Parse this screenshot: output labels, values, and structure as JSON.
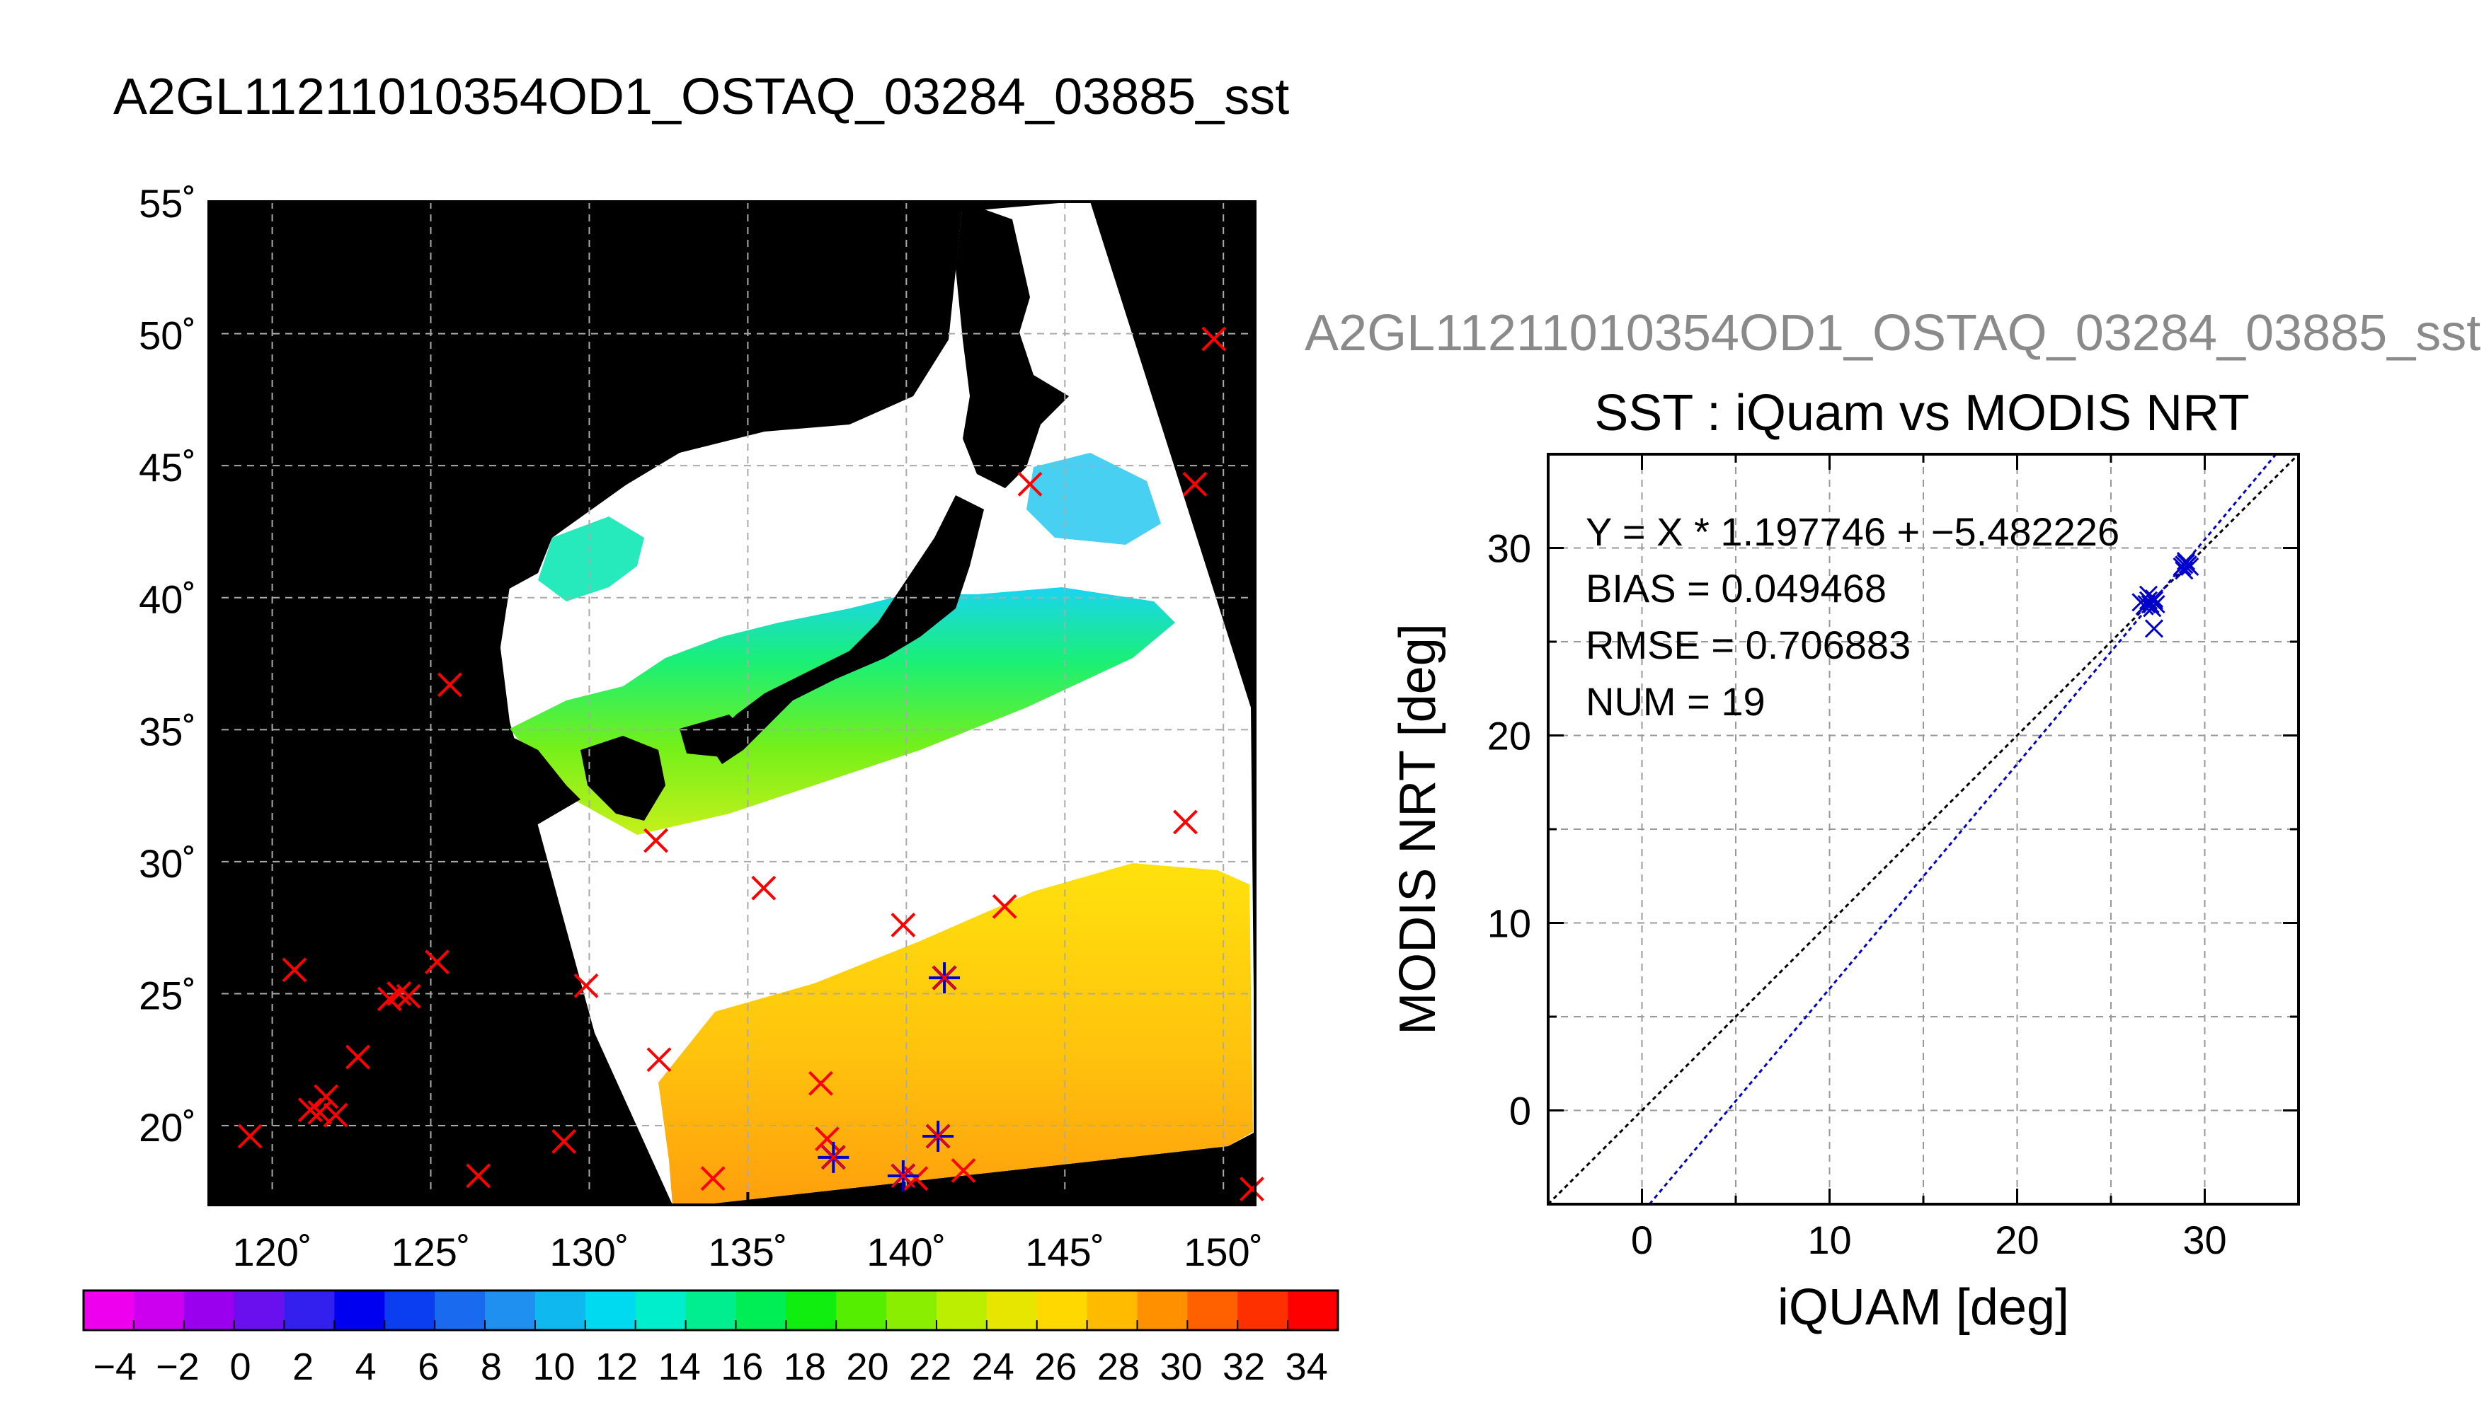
{
  "title": "A2GL11211010354OD1_OSTAQ_03284_03885_sst",
  "map": {
    "lat_ticks": [
      "55˚",
      "50˚",
      "45˚",
      "40˚",
      "35˚",
      "30˚",
      "25˚",
      "20˚"
    ],
    "lon_ticks": [
      "120˚",
      "125˚",
      "130˚",
      "135˚",
      "140˚",
      "145˚",
      "150˚"
    ],
    "colorbar_ticks": [
      "−4",
      "−2",
      "0",
      "2",
      "4",
      "6",
      "8",
      "10",
      "12",
      "14",
      "16",
      "18",
      "20",
      "22",
      "24",
      "26",
      "28",
      "30",
      "32",
      "34"
    ],
    "colorbar_colors": [
      "#ee00ee",
      "#cc00ee",
      "#9a00ee",
      "#6a10ee",
      "#3320ee",
      "#0000f0",
      "#0a3ef0",
      "#1a6af0",
      "#2090f0",
      "#10b8f0",
      "#00daf0",
      "#00eecc",
      "#00ee90",
      "#00ee55",
      "#10ee10",
      "#55ee00",
      "#8aee00",
      "#bbee00",
      "#e6e600",
      "#ffd800",
      "#ffbb00",
      "#ff9000",
      "#ff6000",
      "#ff3000",
      "#ff0000"
    ],
    "buoy_symbol_color": "#ff0000",
    "match_symbol_color": "#0000cc"
  },
  "scatter": {
    "subtitle": "A2GL11211010354OD1_OSTAQ_03284_03885_sst",
    "stats": {
      "equation": "Y = X * 1.197746 + −5.482226",
      "bias": "BIAS = 0.049468",
      "rmse": "RMSE = 0.706883",
      "num": "NUM = 19"
    },
    "reference_line_color": "#000000",
    "fit_line_color": "#0000cc"
  },
  "chart_data": [
    {
      "type": "scatter",
      "title": "SST : iQuam vs MODIS NRT",
      "xlabel": "iQUAM [deg]",
      "ylabel": "MODIS NRT [deg]",
      "xlim": [
        -5,
        35
      ],
      "ylim": [
        -5,
        35
      ],
      "x_ticks": [
        0,
        10,
        20,
        30
      ],
      "y_ticks": [
        0,
        10,
        20,
        30
      ],
      "grid": true,
      "fit": {
        "slope": 1.197746,
        "intercept": -5.482226
      },
      "series": [
        {
          "x": [
            26.6,
            26.8,
            27.0,
            27.1,
            27.2,
            27.3,
            27.0,
            26.9,
            27.3,
            27.4,
            27.3,
            28.8,
            29.0,
            28.9,
            29.1,
            29.0,
            28.8,
            28.9,
            29.2
          ],
          "y": [
            27.1,
            26.9,
            27.2,
            27.0,
            26.8,
            27.2,
            27.5,
            27.0,
            25.7,
            27.0,
            27.3,
            29.0,
            29.2,
            28.8,
            29.1,
            29.3,
            29.0,
            29.1,
            29.0
          ]
        }
      ]
    },
    {
      "type": "scatter",
      "title": "",
      "xlabel": "",
      "ylabel": "",
      "xlim": [
        118,
        151
      ],
      "ylim": [
        17,
        55
      ],
      "grid": true,
      "series": [
        {
          "x": [
            119.3,
            120.7,
            121.2,
            121.5,
            121.7,
            122.0,
            122.7,
            123.7,
            124.0,
            124.3,
            125.2,
            125.6,
            126.5,
            129.2,
            129.9,
            132.1,
            132.2,
            133.9,
            135.5,
            137.3,
            137.5,
            139.9,
            140.3,
            141.2,
            141.8,
            143.1,
            143.9,
            148.8,
            149.1,
            149.7,
            150.9
          ],
          "y": [
            19.6,
            25.9,
            20.6,
            20.5,
            21.1,
            20.4,
            22.6,
            24.8,
            25.0,
            24.9,
            26.2,
            36.7,
            18.1,
            19.4,
            25.3,
            30.8,
            22.5,
            18.0,
            29.0,
            21.6,
            19.5,
            27.6,
            18.0,
            25.6,
            18.3,
            28.3,
            44.3,
            31.5,
            44.3,
            49.8,
            17.6
          ]
        },
        {
          "x": [
            137.7,
            139.9,
            141.0,
            141.2
          ],
          "y": [
            18.8,
            18.1,
            19.6,
            25.6
          ]
        }
      ]
    }
  ]
}
